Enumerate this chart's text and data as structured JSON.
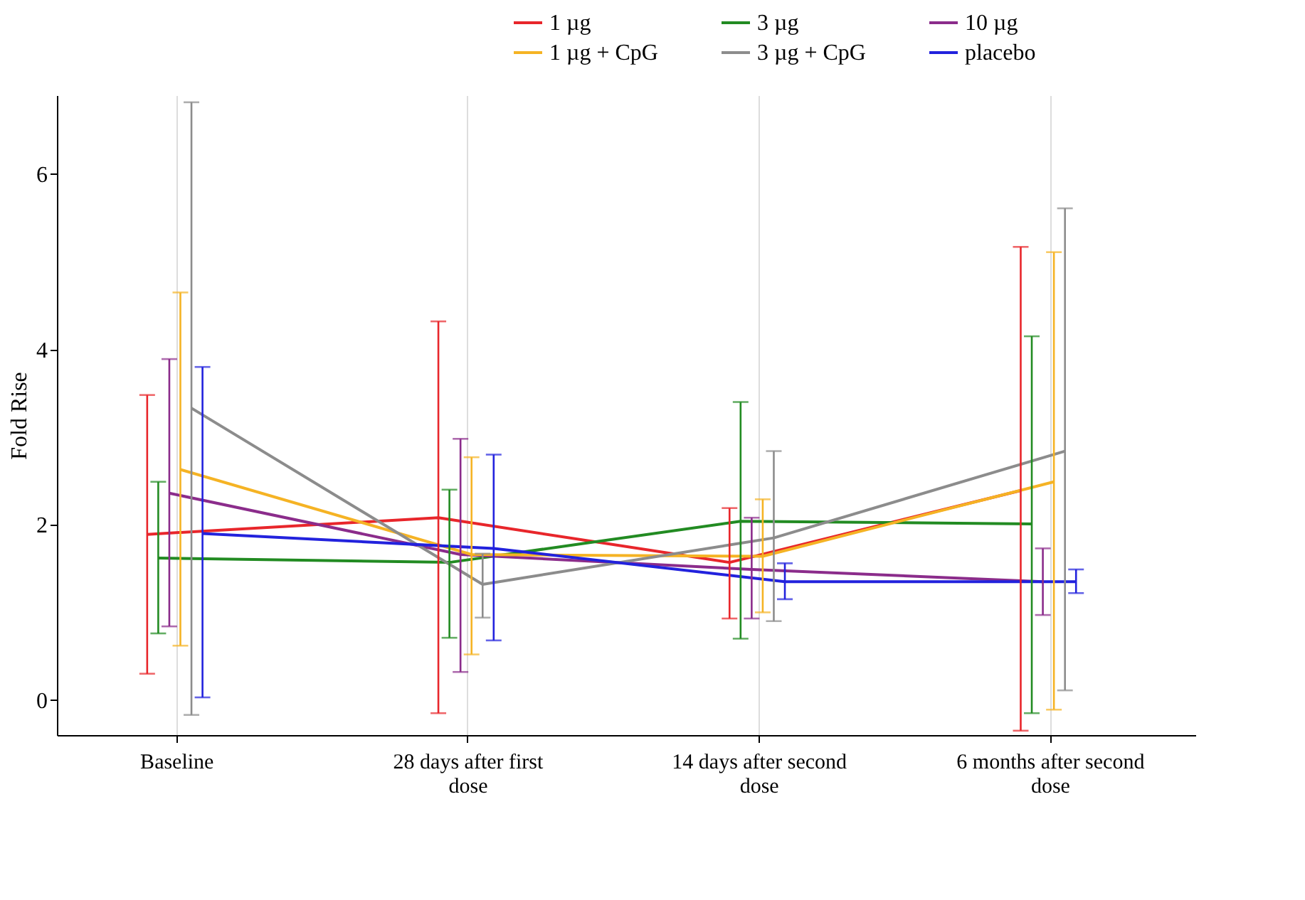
{
  "chart_data": {
    "type": "line",
    "ylabel": "Fold Rise",
    "categories": [
      "Baseline",
      "28 days after first dose",
      "14 days after second dose",
      "6 months after second dose"
    ],
    "ylim": [
      -0.4,
      6.9
    ],
    "yticks": [
      0,
      2,
      4,
      6
    ],
    "grid": "x",
    "legend": "top right",
    "marker": "none",
    "line_style": "solid",
    "series": [
      {
        "name": "1 µg",
        "color": "#e8262b",
        "values": [
          1.89,
          2.08,
          1.57,
          2.39
        ],
        "errors": [
          [
            0.3,
            3.48
          ],
          [
            -0.15,
            4.32
          ],
          [
            0.93,
            2.19
          ],
          [
            -0.35,
            5.17
          ]
        ]
      },
      {
        "name": "3 µg",
        "color": "#228b22",
        "values": [
          1.62,
          1.57,
          2.04,
          2.01
        ],
        "errors": [
          [
            0.76,
            2.49
          ],
          [
            0.71,
            2.4
          ],
          [
            0.7,
            3.4
          ],
          [
            -0.15,
            4.15
          ]
        ]
      },
      {
        "name": "10 µg",
        "color": "#8b2c8b",
        "values": [
          2.36,
          1.66,
          1.49,
          1.35
        ],
        "errors": [
          [
            0.84,
            3.89
          ],
          [
            0.32,
            2.98
          ],
          [
            0.93,
            2.08
          ],
          [
            0.97,
            1.73
          ]
        ]
      },
      {
        "name": "1 µg + CpG",
        "color": "#f5b324",
        "values": [
          2.63,
          1.66,
          1.64,
          2.49
        ],
        "errors": [
          [
            0.62,
            4.65
          ],
          [
            0.52,
            2.77
          ],
          [
            1.0,
            2.29
          ],
          [
            -0.11,
            5.11
          ]
        ]
      },
      {
        "name": "3 µg + CpG",
        "color": "#8c8c8c",
        "values": [
          3.33,
          1.32,
          1.85,
          2.84
        ],
        "errors": [
          [
            -0.17,
            6.82
          ],
          [
            0.94,
            1.67
          ],
          [
            0.9,
            2.84
          ],
          [
            0.11,
            5.61
          ]
        ]
      },
      {
        "name": "placebo",
        "color": "#2222dd",
        "values": [
          1.9,
          1.73,
          1.35,
          1.35
        ],
        "errors": [
          [
            0.03,
            3.8
          ],
          [
            0.68,
            2.8
          ],
          [
            1.15,
            1.56
          ],
          [
            1.22,
            1.49
          ]
        ]
      }
    ]
  }
}
